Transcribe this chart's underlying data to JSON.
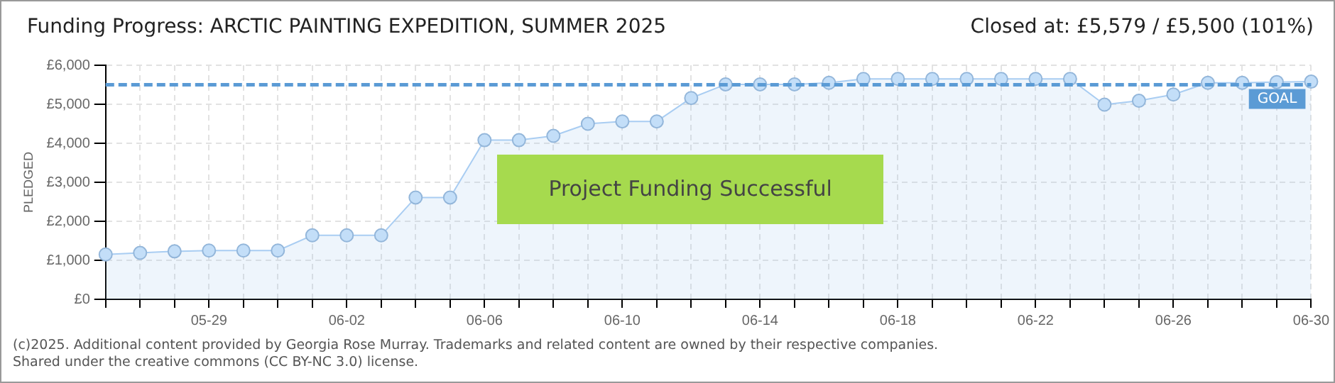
{
  "chart_data": {
    "type": "area",
    "title": "Funding Progress: ARCTIC PAINTING EXPEDITION, SUMMER 2025",
    "subtitle": "Closed at:  £5,579 /  £5,500 (101%)",
    "ylabel": "PLEDGED",
    "categories": [
      null,
      null,
      null,
      "05-29",
      null,
      null,
      null,
      "06-02",
      null,
      null,
      null,
      "06-06",
      null,
      null,
      null,
      "06-10",
      null,
      null,
      null,
      "06-14",
      null,
      null,
      null,
      "06-18",
      null,
      null,
      null,
      "06-22",
      null,
      null,
      null,
      "06-26",
      null,
      null,
      null,
      "06-30"
    ],
    "series": [
      {
        "color": "#a9cdf2",
        "values": [
          1150,
          1190,
          1230,
          1250,
          1250,
          1250,
          1640,
          1640,
          1640,
          2610,
          2610,
          4080,
          4080,
          4190,
          4500,
          4560,
          4560,
          5160,
          5510,
          5510,
          5510,
          5550,
          5650,
          5650,
          5650,
          5650,
          5650,
          5650,
          5650,
          4990,
          5090,
          5250,
          5550,
          5550,
          5570,
          5580
        ]
      }
    ],
    "ylim": [
      0,
      6000
    ],
    "yticks": [
      {
        "value": 0,
        "label": "£0"
      },
      {
        "value": 1000,
        "label": "£1,000"
      },
      {
        "value": 2000,
        "label": "£2,000"
      },
      {
        "value": 3000,
        "label": "£3,000"
      },
      {
        "value": 4000,
        "label": "£4,000"
      },
      {
        "value": 5000,
        "label": "£5,000"
      },
      {
        "value": 6000,
        "label": "£6,000"
      }
    ],
    "ref_lines": [
      {
        "axis": "y",
        "value": 5500,
        "label": "GOAL",
        "color": "#5b9bd5",
        "line_style": "dashed"
      }
    ],
    "annotations": [
      "Project Funding Successful",
      "(c)2025. Additional content provided by Georgia Rose Murray. Trademarks and related content are owned by their respective companies.",
      "Shared under the creative commons (CC BY-NC 3.0) license."
    ],
    "grid": true,
    "legend": false,
    "marker": "circle",
    "line_style": "solid"
  }
}
